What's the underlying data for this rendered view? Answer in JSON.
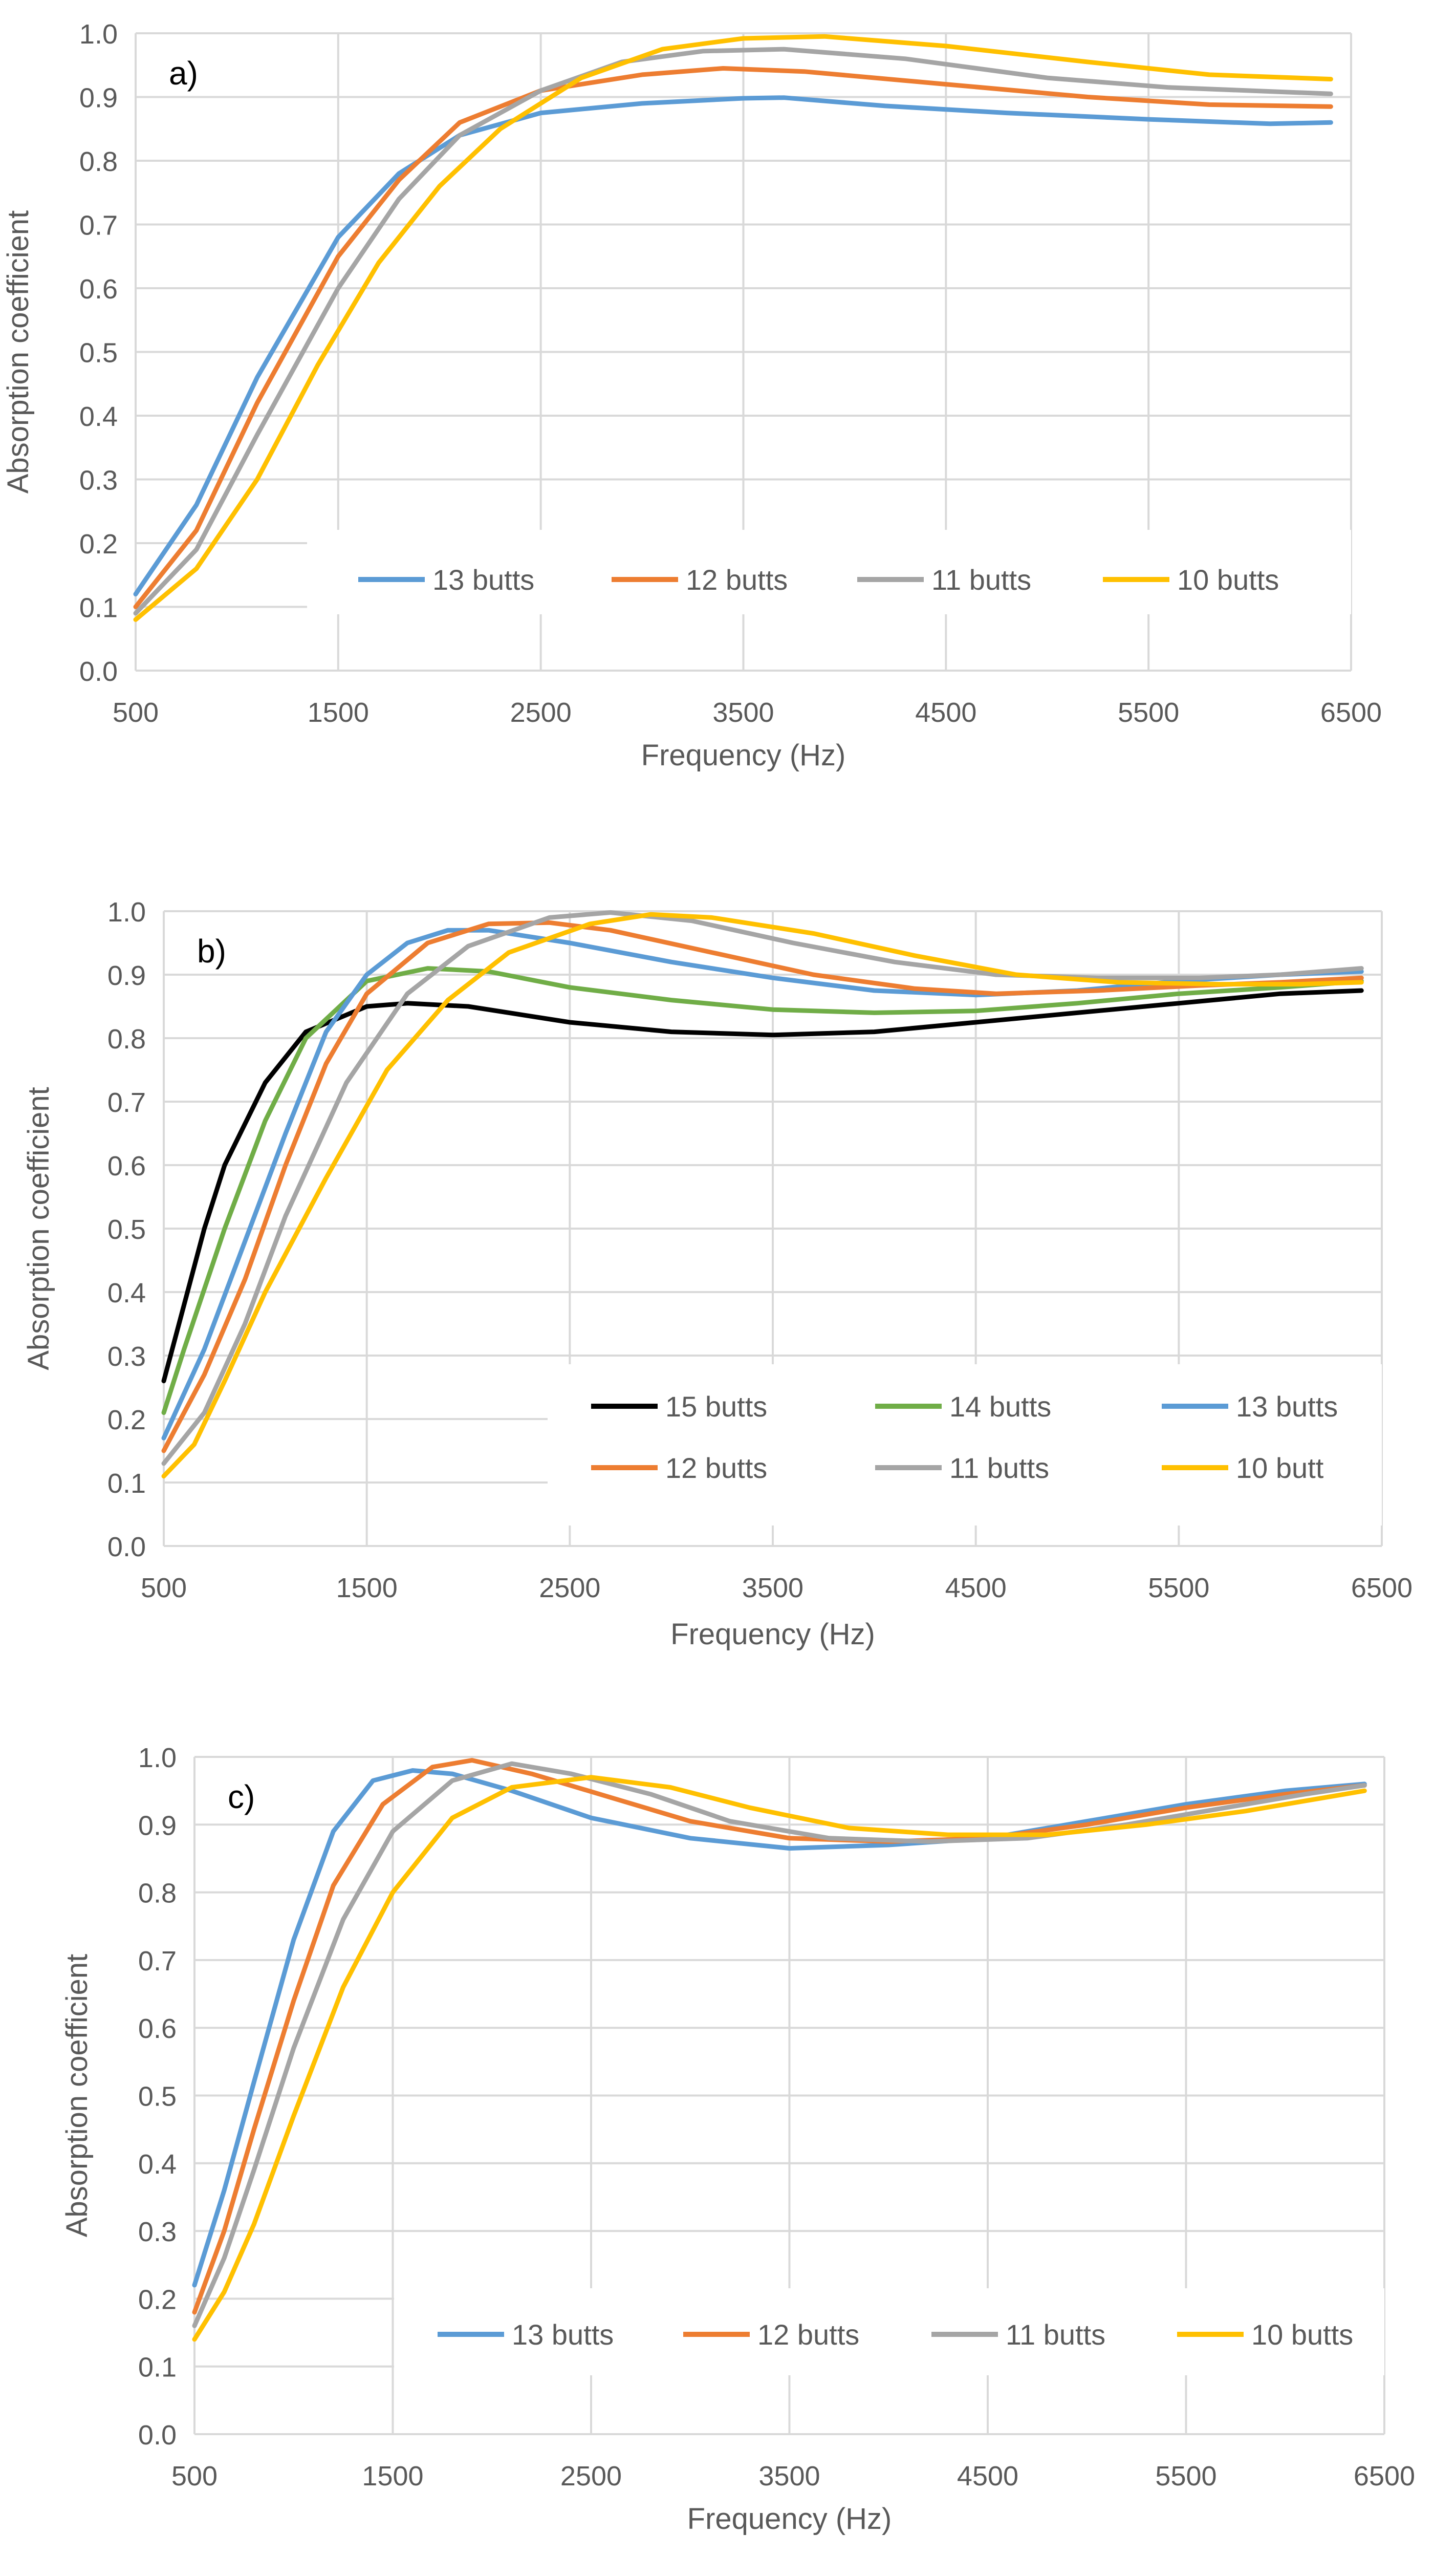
{
  "colors": {
    "blue": "#5B9BD5",
    "orange": "#ED7D31",
    "gray": "#A5A5A5",
    "yellow": "#FFC000",
    "green": "#70AD47",
    "black": "#000000",
    "grid": "#D9D9D9",
    "text": "#595959"
  },
  "chart_data": [
    {
      "type": "line",
      "panel_label": "a)",
      "xlabel": "Frequency (Hz)",
      "ylabel": "Absorption coefficient",
      "xlim": [
        500,
        6500
      ],
      "ylim": [
        0,
        1.0
      ],
      "x_ticks": [
        "500",
        "1500",
        "2500",
        "3500",
        "4500",
        "5500",
        "6500"
      ],
      "y_ticks": [
        "0.0",
        "0.1",
        "0.2",
        "0.3",
        "0.4",
        "0.5",
        "0.6",
        "0.7",
        "0.8",
        "0.9",
        "1.0"
      ],
      "legend_position": "bottom-center",
      "series": [
        {
          "name": "13 butts",
          "color": "blue",
          "points": [
            [
              500,
              0.12
            ],
            [
              800,
              0.26
            ],
            [
              1100,
              0.46
            ],
            [
              1500,
              0.68
            ],
            [
              1800,
              0.78
            ],
            [
              2100,
              0.84
            ],
            [
              2500,
              0.875
            ],
            [
              3000,
              0.89
            ],
            [
              3500,
              0.898
            ],
            [
              3700,
              0.899
            ],
            [
              4200,
              0.886
            ],
            [
              4800,
              0.875
            ],
            [
              5500,
              0.865
            ],
            [
              6100,
              0.858
            ],
            [
              6400,
              0.86
            ]
          ]
        },
        {
          "name": "12 butts",
          "color": "orange",
          "points": [
            [
              500,
              0.1
            ],
            [
              800,
              0.22
            ],
            [
              1100,
              0.42
            ],
            [
              1500,
              0.65
            ],
            [
              1800,
              0.77
            ],
            [
              2100,
              0.86
            ],
            [
              2500,
              0.91
            ],
            [
              3000,
              0.935
            ],
            [
              3400,
              0.945
            ],
            [
              3800,
              0.94
            ],
            [
              4500,
              0.92
            ],
            [
              5200,
              0.9
            ],
            [
              5800,
              0.888
            ],
            [
              6400,
              0.885
            ]
          ]
        },
        {
          "name": "11 butts",
          "color": "gray",
          "points": [
            [
              500,
              0.09
            ],
            [
              800,
              0.19
            ],
            [
              1100,
              0.37
            ],
            [
              1500,
              0.6
            ],
            [
              1800,
              0.74
            ],
            [
              2100,
              0.84
            ],
            [
              2500,
              0.91
            ],
            [
              2900,
              0.955
            ],
            [
              3300,
              0.972
            ],
            [
              3700,
              0.975
            ],
            [
              4300,
              0.96
            ],
            [
              5000,
              0.93
            ],
            [
              5600,
              0.915
            ],
            [
              6400,
              0.905
            ]
          ]
        },
        {
          "name": "10 butts",
          "color": "yellow",
          "points": [
            [
              500,
              0.08
            ],
            [
              800,
              0.16
            ],
            [
              1100,
              0.3
            ],
            [
              1400,
              0.48
            ],
            [
              1700,
              0.64
            ],
            [
              2000,
              0.76
            ],
            [
              2300,
              0.85
            ],
            [
              2700,
              0.93
            ],
            [
              3100,
              0.975
            ],
            [
              3500,
              0.992
            ],
            [
              3900,
              0.995
            ],
            [
              4500,
              0.98
            ],
            [
              5200,
              0.955
            ],
            [
              5800,
              0.935
            ],
            [
              6400,
              0.928
            ]
          ]
        }
      ]
    },
    {
      "type": "line",
      "panel_label": "b)",
      "xlabel": "Frequency (Hz)",
      "ylabel": "Absorption coefficient",
      "xlim": [
        500,
        6500
      ],
      "ylim": [
        0,
        1.0
      ],
      "x_ticks": [
        "500",
        "1500",
        "2500",
        "3500",
        "4500",
        "5500",
        "6500"
      ],
      "y_ticks": [
        "0.0",
        "0.1",
        "0.2",
        "0.3",
        "0.4",
        "0.5",
        "0.6",
        "0.7",
        "0.8",
        "0.9",
        "1.0"
      ],
      "legend_position": "bottom-right",
      "series": [
        {
          "name": "15 butts",
          "color": "black",
          "points": [
            [
              500,
              0.26
            ],
            [
              600,
              0.38
            ],
            [
              700,
              0.5
            ],
            [
              800,
              0.6
            ],
            [
              1000,
              0.73
            ],
            [
              1200,
              0.81
            ],
            [
              1500,
              0.85
            ],
            [
              1700,
              0.855
            ],
            [
              2000,
              0.85
            ],
            [
              2500,
              0.825
            ],
            [
              3000,
              0.81
            ],
            [
              3500,
              0.805
            ],
            [
              4000,
              0.81
            ],
            [
              4500,
              0.825
            ],
            [
              5000,
              0.84
            ],
            [
              5500,
              0.855
            ],
            [
              6000,
              0.87
            ],
            [
              6400,
              0.875
            ]
          ]
        },
        {
          "name": "14 butts",
          "color": "green",
          "points": [
            [
              500,
              0.21
            ],
            [
              600,
              0.31
            ],
            [
              800,
              0.5
            ],
            [
              1000,
              0.67
            ],
            [
              1200,
              0.8
            ],
            [
              1500,
              0.89
            ],
            [
              1800,
              0.91
            ],
            [
              2100,
              0.905
            ],
            [
              2500,
              0.88
            ],
            [
              3000,
              0.86
            ],
            [
              3500,
              0.845
            ],
            [
              4000,
              0.84
            ],
            [
              4500,
              0.843
            ],
            [
              5000,
              0.855
            ],
            [
              5500,
              0.87
            ],
            [
              6000,
              0.88
            ],
            [
              6400,
              0.89
            ]
          ]
        },
        {
          "name": "13 butts",
          "color": "blue",
          "points": [
            [
              500,
              0.17
            ],
            [
              700,
              0.31
            ],
            [
              900,
              0.48
            ],
            [
              1100,
              0.65
            ],
            [
              1300,
              0.81
            ],
            [
              1500,
              0.9
            ],
            [
              1700,
              0.95
            ],
            [
              1900,
              0.97
            ],
            [
              2100,
              0.97
            ],
            [
              2500,
              0.95
            ],
            [
              3000,
              0.92
            ],
            [
              3500,
              0.895
            ],
            [
              4000,
              0.875
            ],
            [
              4500,
              0.868
            ],
            [
              5000,
              0.875
            ],
            [
              5500,
              0.89
            ],
            [
              6000,
              0.9
            ],
            [
              6400,
              0.905
            ]
          ]
        },
        {
          "name": "12 butts",
          "color": "orange",
          "points": [
            [
              500,
              0.15
            ],
            [
              700,
              0.27
            ],
            [
              900,
              0.42
            ],
            [
              1100,
              0.6
            ],
            [
              1300,
              0.76
            ],
            [
              1500,
              0.87
            ],
            [
              1800,
              0.95
            ],
            [
              2100,
              0.98
            ],
            [
              2400,
              0.982
            ],
            [
              2700,
              0.97
            ],
            [
              3200,
              0.935
            ],
            [
              3700,
              0.9
            ],
            [
              4200,
              0.878
            ],
            [
              4600,
              0.87
            ],
            [
              5100,
              0.875
            ],
            [
              5600,
              0.883
            ],
            [
              6000,
              0.888
            ],
            [
              6400,
              0.895
            ]
          ]
        },
        {
          "name": "11 butts",
          "color": "gray",
          "points": [
            [
              500,
              0.13
            ],
            [
              700,
              0.21
            ],
            [
              900,
              0.35
            ],
            [
              1100,
              0.52
            ],
            [
              1400,
              0.73
            ],
            [
              1700,
              0.87
            ],
            [
              2000,
              0.945
            ],
            [
              2400,
              0.99
            ],
            [
              2700,
              0.998
            ],
            [
              3100,
              0.985
            ],
            [
              3600,
              0.95
            ],
            [
              4100,
              0.92
            ],
            [
              4600,
              0.9
            ],
            [
              5100,
              0.895
            ],
            [
              5600,
              0.895
            ],
            [
              6000,
              0.9
            ],
            [
              6400,
              0.91
            ]
          ]
        },
        {
          "name": "10 butt",
          "color": "yellow",
          "points": [
            [
              500,
              0.11
            ],
            [
              650,
              0.16
            ],
            [
              800,
              0.26
            ],
            [
              1000,
              0.4
            ],
            [
              1300,
              0.58
            ],
            [
              1600,
              0.75
            ],
            [
              1900,
              0.86
            ],
            [
              2200,
              0.935
            ],
            [
              2600,
              0.98
            ],
            [
              2900,
              0.995
            ],
            [
              3200,
              0.99
            ],
            [
              3700,
              0.965
            ],
            [
              4200,
              0.93
            ],
            [
              4700,
              0.9
            ],
            [
              5200,
              0.888
            ],
            [
              5700,
              0.885
            ],
            [
              6100,
              0.885
            ],
            [
              6400,
              0.888
            ]
          ]
        }
      ]
    },
    {
      "type": "line",
      "panel_label": "c)",
      "xlabel": "Frequency (Hz)",
      "ylabel": "Absorption coefficient",
      "xlim": [
        500,
        6500
      ],
      "ylim": [
        0,
        1.0
      ],
      "x_ticks": [
        "500",
        "1500",
        "2500",
        "3500",
        "4500",
        "5500",
        "6500"
      ],
      "y_ticks": [
        "0.0",
        "0.1",
        "0.2",
        "0.3",
        "0.4",
        "0.5",
        "0.6",
        "0.7",
        "0.8",
        "0.9",
        "1.0"
      ],
      "legend_position": "bottom-center",
      "series": [
        {
          "name": "13 butts",
          "color": "blue",
          "points": [
            [
              500,
              0.22
            ],
            [
              650,
              0.36
            ],
            [
              800,
              0.52
            ],
            [
              1000,
              0.73
            ],
            [
              1200,
              0.89
            ],
            [
              1400,
              0.965
            ],
            [
              1600,
              0.98
            ],
            [
              1800,
              0.975
            ],
            [
              2100,
              0.95
            ],
            [
              2500,
              0.91
            ],
            [
              3000,
              0.88
            ],
            [
              3500,
              0.865
            ],
            [
              4000,
              0.87
            ],
            [
              4500,
              0.88
            ],
            [
              5000,
              0.905
            ],
            [
              5500,
              0.93
            ],
            [
              6000,
              0.95
            ],
            [
              6400,
              0.96
            ]
          ]
        },
        {
          "name": "12 butts",
          "color": "orange",
          "points": [
            [
              500,
              0.18
            ],
            [
              650,
              0.3
            ],
            [
              800,
              0.45
            ],
            [
              1000,
              0.64
            ],
            [
              1200,
              0.81
            ],
            [
              1450,
              0.93
            ],
            [
              1700,
              0.985
            ],
            [
              1900,
              0.995
            ],
            [
              2200,
              0.975
            ],
            [
              2600,
              0.94
            ],
            [
              3000,
              0.905
            ],
            [
              3500,
              0.88
            ],
            [
              4000,
              0.875
            ],
            [
              4500,
              0.88
            ],
            [
              5000,
              0.9
            ],
            [
              5500,
              0.925
            ],
            [
              6000,
              0.945
            ],
            [
              6400,
              0.958
            ]
          ]
        },
        {
          "name": "11 butts",
          "color": "gray",
          "points": [
            [
              500,
              0.16
            ],
            [
              650,
              0.26
            ],
            [
              800,
              0.39
            ],
            [
              1000,
              0.57
            ],
            [
              1250,
              0.76
            ],
            [
              1500,
              0.89
            ],
            [
              1800,
              0.965
            ],
            [
              2100,
              0.99
            ],
            [
              2400,
              0.975
            ],
            [
              2800,
              0.945
            ],
            [
              3200,
              0.905
            ],
            [
              3700,
              0.88
            ],
            [
              4200,
              0.875
            ],
            [
              4700,
              0.88
            ],
            [
              5200,
              0.9
            ],
            [
              5700,
              0.925
            ],
            [
              6100,
              0.945
            ],
            [
              6400,
              0.958
            ]
          ]
        },
        {
          "name": "10 butts",
          "color": "yellow",
          "points": [
            [
              500,
              0.14
            ],
            [
              650,
              0.21
            ],
            [
              800,
              0.31
            ],
            [
              1000,
              0.47
            ],
            [
              1250,
              0.66
            ],
            [
              1500,
              0.8
            ],
            [
              1800,
              0.91
            ],
            [
              2100,
              0.955
            ],
            [
              2500,
              0.97
            ],
            [
              2900,
              0.955
            ],
            [
              3300,
              0.925
            ],
            [
              3800,
              0.895
            ],
            [
              4300,
              0.885
            ],
            [
              4800,
              0.885
            ],
            [
              5300,
              0.9
            ],
            [
              5800,
              0.92
            ],
            [
              6200,
              0.94
            ],
            [
              6400,
              0.95
            ]
          ]
        }
      ]
    }
  ]
}
